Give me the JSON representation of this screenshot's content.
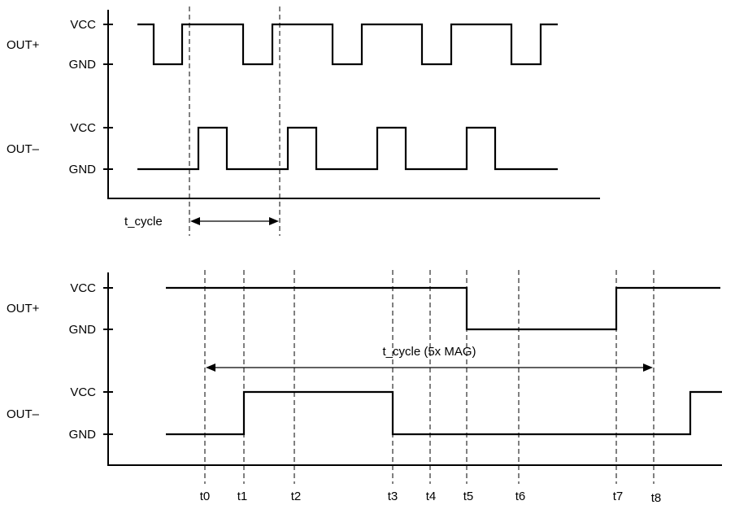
{
  "top_panel": {
    "out_plus_label": "OUT+",
    "out_minus_label": "OUT–",
    "vcc_label": "VCC",
    "gnd_label": "GND",
    "cycle_label": "t_cycle"
  },
  "bottom_panel": {
    "out_plus_label": "OUT+",
    "out_minus_label": "OUT–",
    "vcc_label": "VCC",
    "gnd_label": "GND",
    "cycle_label": "t_cycle (5x MAG)",
    "time_markers": [
      "t0",
      "t1",
      "t2",
      "t3",
      "t4",
      "t5",
      "t6",
      "t7",
      "t8"
    ]
  }
}
